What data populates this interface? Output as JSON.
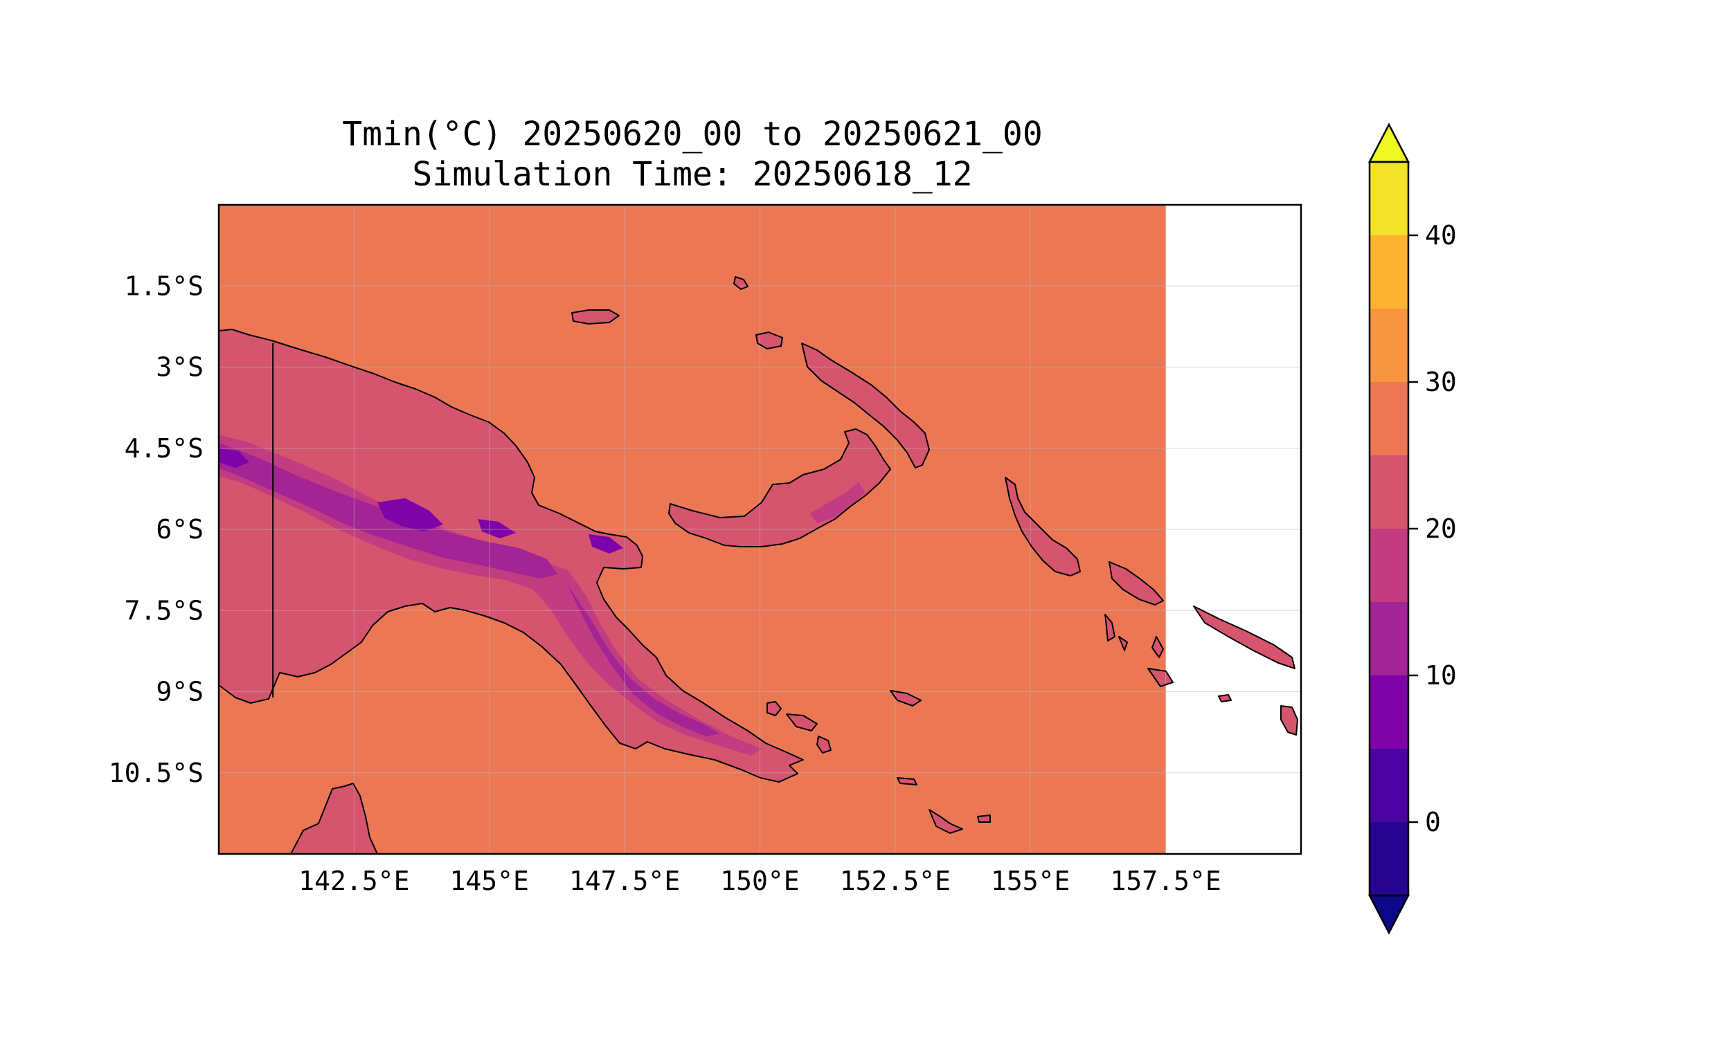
{
  "title": {
    "line1": "Tmin(°C) 20250620_00 to 20250621_00",
    "line2": "Simulation Time: 20250618_12"
  },
  "map": {
    "extent": {
      "lon_min": 140.0,
      "lon_max": 160.0,
      "lat_min": -12.0,
      "lat_max": 0.0
    },
    "data_lon_max": 157.5,
    "lon_ticks": [
      142.5,
      145,
      147.5,
      150,
      152.5,
      155,
      157.5
    ],
    "lat_ticks": [
      -1.5,
      -3,
      -4.5,
      -6,
      -7.5,
      -9,
      -10.5
    ],
    "lon_tick_labels": [
      "142.5°E",
      "145°E",
      "147.5°E",
      "150°E",
      "152.5°E",
      "155°E",
      "157.5°E"
    ],
    "lat_tick_labels": [
      "1.5°S",
      "3°S",
      "4.5°S",
      "6°S",
      "7.5°S",
      "9°S",
      "10.5°S"
    ],
    "gridlines": true,
    "background_value_band": "25-30",
    "colors": {
      "ocean_fill": "#ec7755",
      "land_warm": "#d5546e",
      "land_mid": "#c23c81",
      "highland": "#a32494",
      "peak": "#7e03a8",
      "coastline": "#000000"
    }
  },
  "colorbar": {
    "levels": [
      -5,
      0,
      5,
      10,
      15,
      20,
      25,
      30,
      35,
      40,
      45
    ],
    "colors": [
      "#260591",
      "#4b03a1",
      "#7e03a8",
      "#a32494",
      "#c23c81",
      "#d5546e",
      "#ec7755",
      "#f89540",
      "#fdb32f",
      "#f3e22a"
    ],
    "under_color": "#0d0887",
    "over_color": "#f0f921",
    "tick_values": [
      0,
      10,
      20,
      30,
      40
    ],
    "tick_labels": [
      "0",
      "10",
      "20",
      "30",
      "40"
    ],
    "extend": "both"
  }
}
